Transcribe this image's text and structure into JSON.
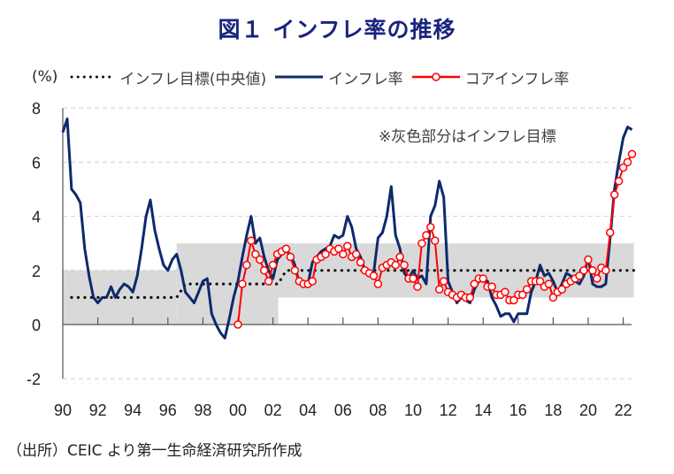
{
  "title": "図１ インフレ率の推移",
  "footer": "（出所）CEIC より第一生命経済研究所作成",
  "chart_data": {
    "type": "line",
    "title": "図１ インフレ率の推移",
    "ylabel": "(%)",
    "xlabel": "",
    "ylim": [
      -2,
      8
    ],
    "xlim": [
      1990,
      2022.75
    ],
    "yticks": [
      {
        "value": 8,
        "label": "8",
        "color": "#222222"
      },
      {
        "value": 6,
        "label": "6",
        "color": "#222222"
      },
      {
        "value": 4,
        "label": "4",
        "color": "#222222"
      },
      {
        "value": 2,
        "label": "2",
        "color": "#222222"
      },
      {
        "value": 0,
        "label": "0",
        "color": "#222222"
      },
      {
        "value": -2,
        "label": "-2",
        "color": "#ff0000"
      }
    ],
    "xticks": [
      {
        "value": 1990,
        "label": "90"
      },
      {
        "value": 1992,
        "label": "92"
      },
      {
        "value": 1994,
        "label": "94"
      },
      {
        "value": 1996,
        "label": "96"
      },
      {
        "value": 1998,
        "label": "98"
      },
      {
        "value": 2000,
        "label": "00"
      },
      {
        "value": 2002,
        "label": "02"
      },
      {
        "value": 2004,
        "label": "04"
      },
      {
        "value": 2006,
        "label": "06"
      },
      {
        "value": 2008,
        "label": "08"
      },
      {
        "value": 2010,
        "label": "10"
      },
      {
        "value": 2012,
        "label": "12"
      },
      {
        "value": 2014,
        "label": "14"
      },
      {
        "value": 2016,
        "label": "16"
      },
      {
        "value": 2018,
        "label": "18"
      },
      {
        "value": 2020,
        "label": "20"
      },
      {
        "value": 2022,
        "label": "22"
      }
    ],
    "grid": "horizontal-dashed",
    "annotation": "※灰色部分はインフレ目標",
    "legend": {
      "position": "top",
      "unit": "(%)",
      "entries": [
        {
          "name": "インフレ目標(中央値)",
          "style": "dotted",
          "color": "#111111"
        },
        {
          "name": "インフレ率",
          "style": "solid",
          "color": "#0d2a6b"
        },
        {
          "name": "コアインフレ率",
          "style": "solid-marker",
          "color": "#ff0000"
        }
      ]
    },
    "target_band": {
      "color": "#d9d9d9",
      "segments": [
        {
          "x": [
            1990,
            1996.5
          ],
          "low": 0,
          "high": 2
        },
        {
          "x": [
            1996.5,
            2002.3
          ],
          "low": 0,
          "high": 3
        },
        {
          "x": [
            2002.3,
            2022.6
          ],
          "low": 1,
          "high": 3
        }
      ]
    },
    "series": [
      {
        "name": "インフレ目標(中央値)",
        "color": "#111111",
        "style": "dotted",
        "points": [
          [
            1990.5,
            1.0
          ],
          [
            1996.5,
            1.0
          ],
          [
            1996.75,
            1.25
          ],
          [
            1997,
            1.5
          ],
          [
            2002.3,
            1.5
          ],
          [
            2002.75,
            2.0
          ],
          [
            2022.75,
            2.0
          ]
        ]
      },
      {
        "name": "インフレ率",
        "color": "#0d2a6b",
        "style": "solid",
        "points": [
          [
            1990.0,
            7.1
          ],
          [
            1990.25,
            7.6
          ],
          [
            1990.5,
            5.0
          ],
          [
            1990.75,
            4.8
          ],
          [
            1991.0,
            4.5
          ],
          [
            1991.25,
            2.8
          ],
          [
            1991.5,
            1.8
          ],
          [
            1991.75,
            1.0
          ],
          [
            1992.0,
            0.8
          ],
          [
            1992.25,
            1.0
          ],
          [
            1992.5,
            1.0
          ],
          [
            1992.75,
            1.4
          ],
          [
            1993.0,
            1.0
          ],
          [
            1993.25,
            1.3
          ],
          [
            1993.5,
            1.5
          ],
          [
            1993.75,
            1.4
          ],
          [
            1994.0,
            1.2
          ],
          [
            1994.25,
            1.8
          ],
          [
            1994.5,
            2.8
          ],
          [
            1994.75,
            4.0
          ],
          [
            1995.0,
            4.6
          ],
          [
            1995.25,
            3.5
          ],
          [
            1995.5,
            2.8
          ],
          [
            1995.75,
            2.2
          ],
          [
            1996.0,
            2.0
          ],
          [
            1996.25,
            2.4
          ],
          [
            1996.5,
            2.6
          ],
          [
            1996.75,
            2.0
          ],
          [
            1997.0,
            1.2
          ],
          [
            1997.25,
            1.0
          ],
          [
            1997.5,
            0.8
          ],
          [
            1997.75,
            1.2
          ],
          [
            1998.0,
            1.6
          ],
          [
            1998.25,
            1.7
          ],
          [
            1998.5,
            0.4
          ],
          [
            1998.75,
            0.0
          ],
          [
            1999.0,
            -0.3
          ],
          [
            1999.25,
            -0.5
          ],
          [
            1999.5,
            0.2
          ],
          [
            1999.75,
            1.0
          ],
          [
            2000.0,
            1.6
          ],
          [
            2000.25,
            2.5
          ],
          [
            2000.5,
            3.3
          ],
          [
            2000.75,
            4.0
          ],
          [
            2001.0,
            3.0
          ],
          [
            2001.25,
            3.2
          ],
          [
            2001.5,
            2.5
          ],
          [
            2001.75,
            2.0
          ],
          [
            2002.0,
            1.7
          ],
          [
            2002.25,
            2.4
          ],
          [
            2002.5,
            2.6
          ],
          [
            2002.75,
            2.7
          ],
          [
            2003.0,
            2.6
          ],
          [
            2003.25,
            2.2
          ],
          [
            2003.5,
            1.5
          ],
          [
            2003.75,
            1.5
          ],
          [
            2004.0,
            1.5
          ],
          [
            2004.25,
            2.3
          ],
          [
            2004.5,
            2.5
          ],
          [
            2004.75,
            2.7
          ],
          [
            2005.0,
            2.8
          ],
          [
            2005.25,
            2.9
          ],
          [
            2005.5,
            3.3
          ],
          [
            2005.75,
            3.2
          ],
          [
            2006.0,
            3.3
          ],
          [
            2006.25,
            4.0
          ],
          [
            2006.5,
            3.6
          ],
          [
            2006.75,
            2.8
          ],
          [
            2007.0,
            2.5
          ],
          [
            2007.25,
            2.0
          ],
          [
            2007.5,
            1.8
          ],
          [
            2007.75,
            1.9
          ],
          [
            2008.0,
            3.2
          ],
          [
            2008.25,
            3.4
          ],
          [
            2008.5,
            4.0
          ],
          [
            2008.75,
            5.1
          ],
          [
            2009.0,
            3.3
          ],
          [
            2009.25,
            2.8
          ],
          [
            2009.5,
            1.9
          ],
          [
            2009.75,
            1.7
          ],
          [
            2010.0,
            2.0
          ],
          [
            2010.25,
            1.7
          ],
          [
            2010.5,
            1.8
          ],
          [
            2010.75,
            1.5
          ],
          [
            2011.0,
            4.0
          ],
          [
            2011.25,
            4.4
          ],
          [
            2011.5,
            5.3
          ],
          [
            2011.75,
            4.7
          ],
          [
            2012.0,
            1.6
          ],
          [
            2012.25,
            1.2
          ],
          [
            2012.5,
            0.8
          ],
          [
            2012.75,
            1.0
          ],
          [
            2013.0,
            0.9
          ],
          [
            2013.25,
            0.8
          ],
          [
            2013.5,
            1.3
          ],
          [
            2013.75,
            1.6
          ],
          [
            2014.0,
            1.7
          ],
          [
            2014.25,
            1.6
          ],
          [
            2014.5,
            1.0
          ],
          [
            2014.75,
            0.7
          ],
          [
            2015.0,
            0.3
          ],
          [
            2015.25,
            0.4
          ],
          [
            2015.5,
            0.4
          ],
          [
            2015.75,
            0.1
          ],
          [
            2016.0,
            0.4
          ],
          [
            2016.25,
            0.4
          ],
          [
            2016.5,
            0.4
          ],
          [
            2016.75,
            1.2
          ],
          [
            2017.0,
            1.6
          ],
          [
            2017.25,
            2.2
          ],
          [
            2017.5,
            1.8
          ],
          [
            2017.75,
            1.9
          ],
          [
            2018.0,
            1.6
          ],
          [
            2018.25,
            1.2
          ],
          [
            2018.5,
            1.5
          ],
          [
            2018.75,
            1.9
          ],
          [
            2019.0,
            1.8
          ],
          [
            2019.25,
            1.6
          ],
          [
            2019.5,
            1.5
          ],
          [
            2019.75,
            1.8
          ],
          [
            2020.0,
            2.5
          ],
          [
            2020.25,
            1.5
          ],
          [
            2020.5,
            1.4
          ],
          [
            2020.75,
            1.4
          ],
          [
            2021.0,
            1.5
          ],
          [
            2021.25,
            3.2
          ],
          [
            2021.5,
            5.0
          ],
          [
            2021.75,
            6.0
          ],
          [
            2022.0,
            6.9
          ],
          [
            2022.25,
            7.3
          ],
          [
            2022.5,
            7.2
          ]
        ]
      },
      {
        "name": "コアインフレ率",
        "color": "#ff0000",
        "style": "solid-marker",
        "points": [
          [
            2000.0,
            0.0
          ],
          [
            2000.25,
            1.5
          ],
          [
            2000.5,
            2.2
          ],
          [
            2000.75,
            3.1
          ],
          [
            2001.0,
            2.6
          ],
          [
            2001.25,
            2.4
          ],
          [
            2001.5,
            2.0
          ],
          [
            2001.75,
            1.6
          ],
          [
            2002.0,
            2.2
          ],
          [
            2002.25,
            2.6
          ],
          [
            2002.5,
            2.7
          ],
          [
            2002.75,
            2.8
          ],
          [
            2003.0,
            2.5
          ],
          [
            2003.25,
            2.0
          ],
          [
            2003.5,
            1.6
          ],
          [
            2003.75,
            1.5
          ],
          [
            2004.0,
            1.5
          ],
          [
            2004.25,
            1.6
          ],
          [
            2004.5,
            2.4
          ],
          [
            2004.75,
            2.5
          ],
          [
            2005.0,
            2.6
          ],
          [
            2005.25,
            2.8
          ],
          [
            2005.5,
            2.7
          ],
          [
            2005.75,
            2.8
          ],
          [
            2006.0,
            2.6
          ],
          [
            2006.25,
            2.9
          ],
          [
            2006.5,
            2.5
          ],
          [
            2006.75,
            2.6
          ],
          [
            2007.0,
            2.3
          ],
          [
            2007.25,
            2.0
          ],
          [
            2007.5,
            1.9
          ],
          [
            2007.75,
            1.8
          ],
          [
            2008.0,
            1.5
          ],
          [
            2008.25,
            2.1
          ],
          [
            2008.5,
            2.2
          ],
          [
            2008.75,
            2.3
          ],
          [
            2009.0,
            2.2
          ],
          [
            2009.25,
            2.5
          ],
          [
            2009.5,
            2.2
          ],
          [
            2009.75,
            1.7
          ],
          [
            2010.0,
            1.7
          ],
          [
            2010.25,
            1.4
          ],
          [
            2010.5,
            3.0
          ],
          [
            2010.75,
            3.3
          ],
          [
            2011.0,
            3.6
          ],
          [
            2011.25,
            3.1
          ],
          [
            2011.5,
            1.3
          ],
          [
            2011.75,
            1.6
          ],
          [
            2012.0,
            1.2
          ],
          [
            2012.25,
            1.1
          ],
          [
            2012.5,
            1.0
          ],
          [
            2012.75,
            1.1
          ],
          [
            2013.0,
            1.0
          ],
          [
            2013.25,
            1.0
          ],
          [
            2013.5,
            1.5
          ],
          [
            2013.75,
            1.7
          ],
          [
            2014.0,
            1.7
          ],
          [
            2014.25,
            1.4
          ],
          [
            2014.5,
            1.4
          ],
          [
            2014.75,
            1.1
          ],
          [
            2015.0,
            1.1
          ],
          [
            2015.25,
            1.2
          ],
          [
            2015.5,
            0.9
          ],
          [
            2015.75,
            0.9
          ],
          [
            2016.0,
            1.1
          ],
          [
            2016.25,
            1.1
          ],
          [
            2016.5,
            1.3
          ],
          [
            2016.75,
            1.6
          ],
          [
            2017.0,
            1.6
          ],
          [
            2017.25,
            1.6
          ],
          [
            2017.5,
            1.4
          ],
          [
            2017.75,
            1.5
          ],
          [
            2018.0,
            1.0
          ],
          [
            2018.25,
            1.2
          ],
          [
            2018.5,
            1.3
          ],
          [
            2018.75,
            1.5
          ],
          [
            2019.0,
            1.6
          ],
          [
            2019.25,
            1.7
          ],
          [
            2019.5,
            1.8
          ],
          [
            2019.75,
            2.0
          ],
          [
            2020.0,
            2.4
          ],
          [
            2020.25,
            2.0
          ],
          [
            2020.5,
            1.7
          ],
          [
            2020.75,
            2.1
          ],
          [
            2021.0,
            2.0
          ],
          [
            2021.25,
            3.4
          ],
          [
            2021.5,
            4.8
          ],
          [
            2021.75,
            5.3
          ],
          [
            2022.0,
            5.8
          ],
          [
            2022.25,
            6.0
          ],
          [
            2022.5,
            6.3
          ]
        ]
      }
    ]
  }
}
